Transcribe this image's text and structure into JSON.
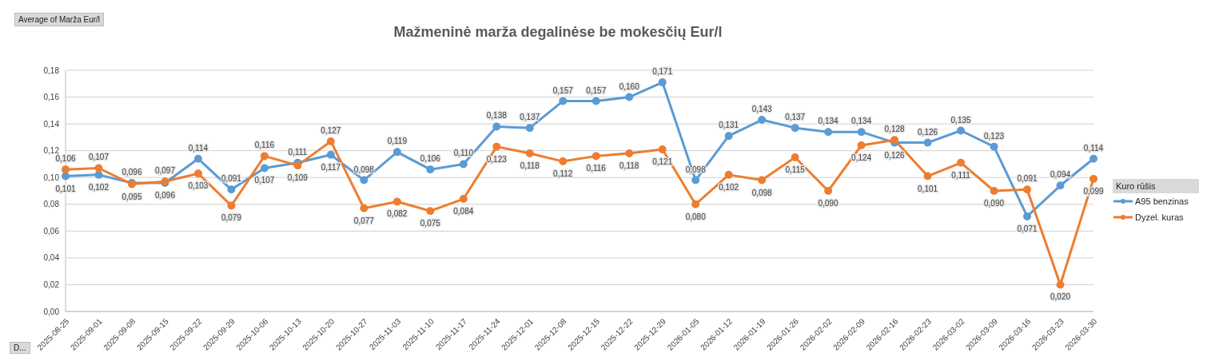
{
  "chart_data": {
    "type": "line",
    "title": "Mažmeninė marža degalinėse be mokesčių Eur/l",
    "legend_title": "Kuro rūšis",
    "annotations": [
      "Average of Marža Eur/l",
      "D..."
    ],
    "categories": [
      "2025-08-25",
      "2025-09-01",
      "2025-09-08",
      "2025-09-15",
      "2025-09-22",
      "2025-09-29",
      "2025-10-06",
      "2025-10-13",
      "2025-10-20",
      "2025-10-27",
      "2025-11-03",
      "2025-11-10",
      "2025-11-17",
      "2025-11-24",
      "2025-12-01",
      "2025-12-08",
      "2025-12-15",
      "2025-12-22",
      "2025-12-29",
      "2026-01-05",
      "2026-01-12",
      "2026-01-19",
      "2026-01-26",
      "2026-02-02",
      "2026-02-09",
      "2026-02-16",
      "2026-02-23",
      "2026-03-02",
      "2026-03-09",
      "2026-03-16",
      "2026-03-23",
      "2026-03-30"
    ],
    "series": [
      {
        "name": "A95 benzinas",
        "color": "#5b9bd5",
        "values": [
          0.101,
          0.102,
          0.096,
          0.096,
          0.114,
          0.091,
          0.107,
          0.111,
          0.117,
          0.098,
          0.119,
          0.106,
          0.11,
          0.138,
          0.137,
          0.157,
          0.157,
          0.16,
          0.171,
          0.098,
          0.131,
          0.143,
          0.137,
          0.134,
          0.134,
          0.126,
          0.126,
          0.135,
          0.123,
          0.071,
          0.094,
          0.114
        ],
        "value_labels": [
          "0,101",
          "0,102",
          "0,096",
          "0,096",
          "0,114",
          "0,091",
          "0,107",
          "0,111",
          "0,117",
          "0,098",
          "0,119",
          "0,106",
          "0,110",
          "0,138",
          "0,137",
          "0,157",
          "0,157",
          "0,160",
          "0,171",
          "0,098",
          "0,131",
          "0,143",
          "0,137",
          "0,134",
          "0,134",
          "0,126",
          "0,126",
          "0,135",
          "0,123",
          "0,071",
          "0,094",
          "0,114"
        ]
      },
      {
        "name": "Dyzel. kuras",
        "color": "#ed7d31",
        "values": [
          0.106,
          0.107,
          0.095,
          0.097,
          0.103,
          0.079,
          0.116,
          0.109,
          0.127,
          0.077,
          0.082,
          0.075,
          0.084,
          0.123,
          0.118,
          0.112,
          0.116,
          0.118,
          0.121,
          0.08,
          0.102,
          0.098,
          0.115,
          0.09,
          0.124,
          0.128,
          0.101,
          0.111,
          0.09,
          0.091,
          0.02,
          0.099
        ],
        "value_labels": [
          "0,106",
          "0,107",
          "0,095",
          "0,097",
          "0,103",
          "0,079",
          "0,116",
          "0,109",
          "0,127",
          "0,077",
          "0,082",
          "0,075",
          "0,084",
          "0,123",
          "0,118",
          "0,112",
          "0,116",
          "0,118",
          "0,121",
          "0,080",
          "0,102",
          "0,098",
          "0,115",
          "0,090",
          "0,124",
          "0,128",
          "0,101",
          "0,111",
          "0,090",
          "0,091",
          "0,020",
          "0,099"
        ]
      }
    ],
    "ylim": [
      0,
      0.18
    ],
    "yticks": [
      {
        "value": 0,
        "label": "0,00"
      },
      {
        "value": 0.02,
        "label": "0,02"
      },
      {
        "value": 0.04,
        "label": "0,04"
      },
      {
        "value": 0.06,
        "label": "0,06"
      },
      {
        "value": 0.08,
        "label": "0,08"
      },
      {
        "value": 0.1,
        "label": "0,10"
      },
      {
        "value": 0.12,
        "label": "0,12"
      },
      {
        "value": 0.14,
        "label": "0,14"
      },
      {
        "value": 0.16,
        "label": "0,16"
      },
      {
        "value": 0.18,
        "label": "0,18"
      }
    ],
    "grid": "y",
    "legend": "right",
    "marker": "circle",
    "line_style": "solid"
  }
}
